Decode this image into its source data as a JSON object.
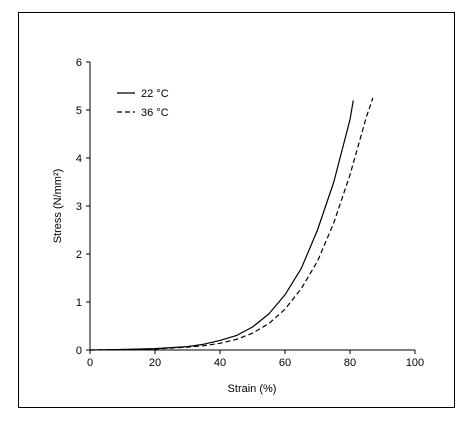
{
  "chart_data": {
    "type": "line",
    "title": "",
    "xlabel": "Strain (%)",
    "ylabel": "Stress (N/mm²)",
    "xlim": [
      0,
      100
    ],
    "ylim": [
      0,
      6
    ],
    "xticks": [
      0,
      20,
      40,
      60,
      80,
      100
    ],
    "yticks": [
      0,
      1,
      2,
      3,
      4,
      5,
      6
    ],
    "grid": false,
    "legend_position": "top-left",
    "series": [
      {
        "name": "22 °C",
        "style": "solid",
        "color": "#000000",
        "x": [
          0,
          10,
          20,
          30,
          35,
          40,
          45,
          50,
          55,
          60,
          65,
          70,
          75,
          80,
          81
        ],
        "y": [
          0,
          0.01,
          0.03,
          0.07,
          0.12,
          0.2,
          0.3,
          0.48,
          0.75,
          1.15,
          1.7,
          2.5,
          3.5,
          4.8,
          5.2
        ]
      },
      {
        "name": "36 °C",
        "style": "dashed",
        "color": "#000000",
        "x": [
          0,
          10,
          20,
          30,
          35,
          40,
          45,
          50,
          55,
          60,
          65,
          70,
          75,
          80,
          85,
          87
        ],
        "y": [
          0,
          0.01,
          0.02,
          0.06,
          0.09,
          0.14,
          0.22,
          0.35,
          0.55,
          0.85,
          1.28,
          1.85,
          2.65,
          3.65,
          4.85,
          5.25
        ]
      }
    ]
  }
}
